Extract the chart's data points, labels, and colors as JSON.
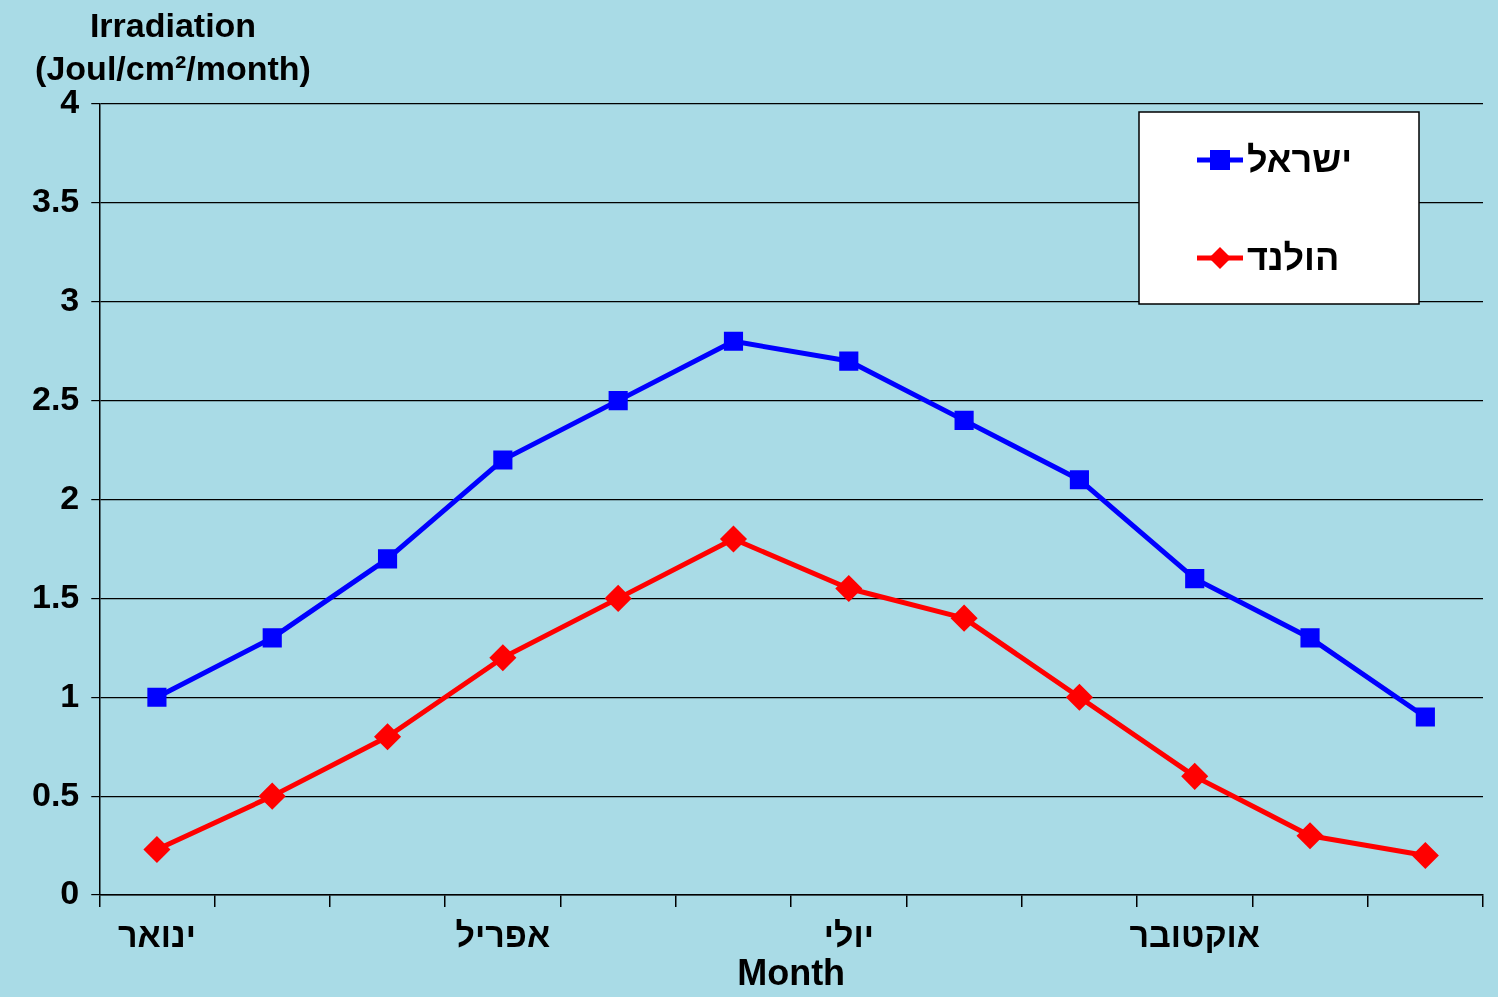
{
  "chart_data": {
    "type": "line",
    "ylabel": "Irradiation\n(Joul/cm²/month)",
    "xlabel": "Month",
    "categories": [
      "ינואר",
      null,
      null,
      "אפריל",
      null,
      null,
      "יולי",
      null,
      null,
      "אוקטובר",
      null,
      null
    ],
    "series": [
      {
        "name": "ישראל",
        "color": "#0000ff",
        "marker": "square",
        "values": [
          1.0,
          1.3,
          1.7,
          2.2,
          2.5,
          2.8,
          2.7,
          2.4,
          2.1,
          1.6,
          1.3,
          0.9
        ]
      },
      {
        "name": "הולנד",
        "color": "#ff0000",
        "marker": "diamond",
        "values": [
          0.23,
          0.5,
          0.8,
          1.2,
          1.5,
          1.8,
          1.55,
          1.4,
          1.0,
          0.6,
          0.3,
          0.2
        ]
      }
    ],
    "ylim": [
      0,
      4
    ],
    "yticks": [
      0,
      0.5,
      1,
      1.5,
      2,
      2.5,
      3,
      3.5,
      4
    ],
    "grid": "y",
    "legend": "top right",
    "line_style": "solid"
  }
}
